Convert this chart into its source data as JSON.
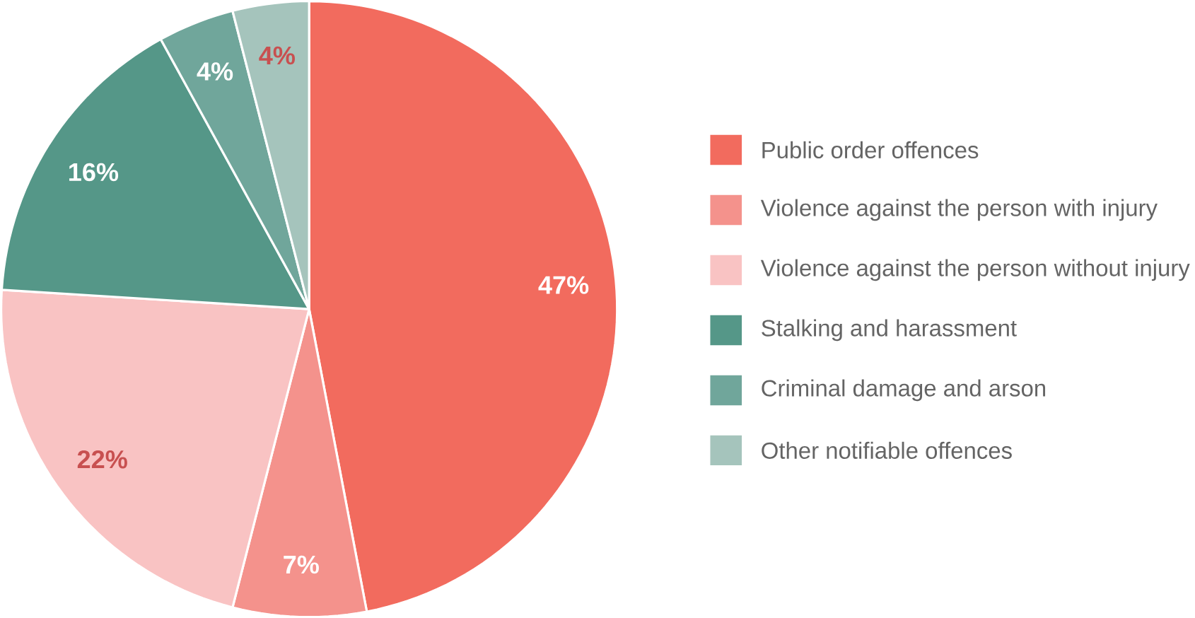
{
  "chart_data": {
    "type": "pie",
    "categories": [
      "Public order offences",
      "Violence against the person with injury",
      "Violence against the person without injury",
      "Stalking and harassment",
      "Criminal damage and arson",
      "Other notifiable offences"
    ],
    "values": [
      47,
      7,
      22,
      16,
      4,
      4
    ],
    "value_labels": [
      "47%",
      "7%",
      "22%",
      "16%",
      "4%",
      "4%"
    ],
    "colors": [
      "#f26b5e",
      "#f4928c",
      "#f9c3c3",
      "#559788",
      "#70a69b",
      "#a5c4bc"
    ],
    "legend": "right"
  }
}
